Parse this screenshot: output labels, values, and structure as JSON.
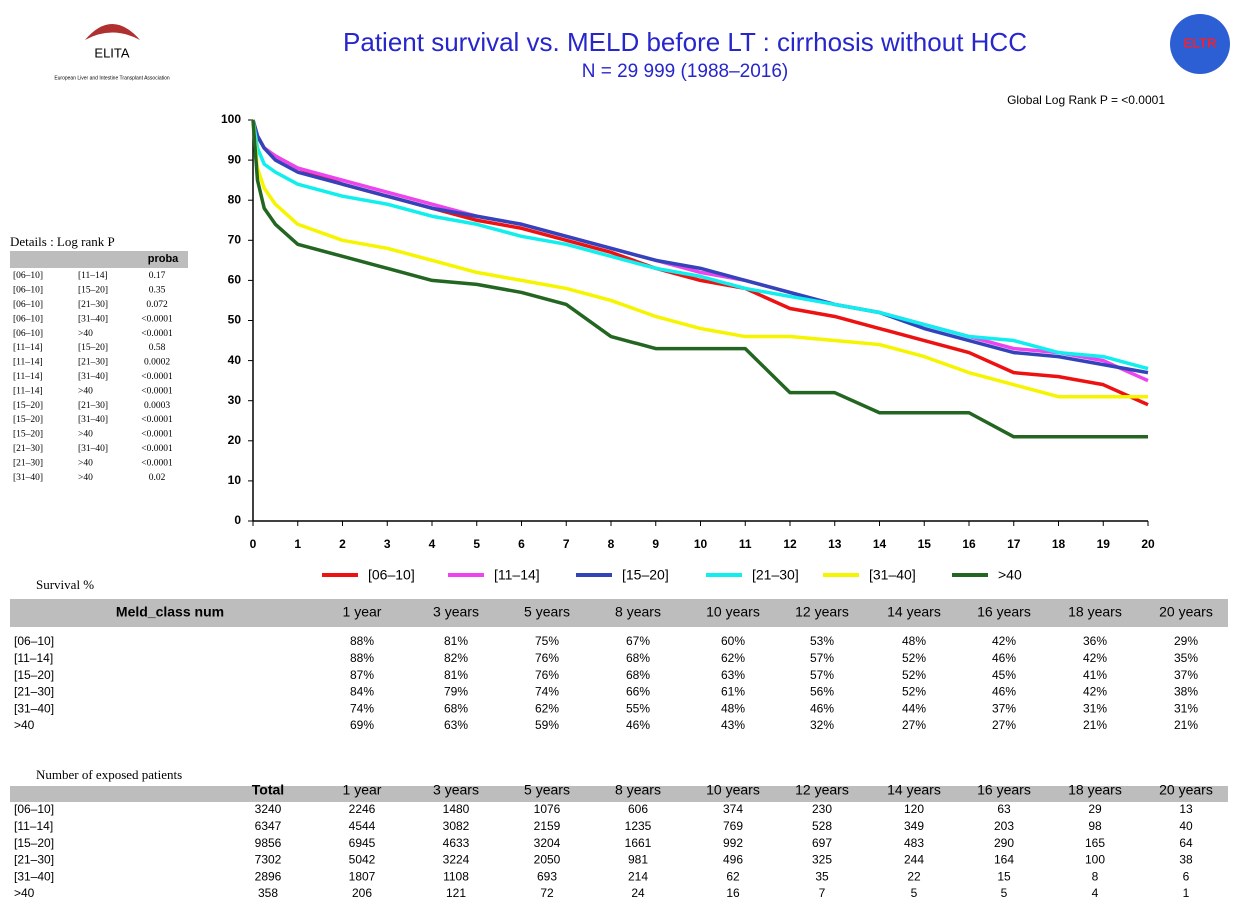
{
  "header": {
    "left_logo": "ELITA",
    "left_logo_caption": "European Liver and Intestine Transplant Association",
    "right_logo": "ELTR"
  },
  "chart_data": {
    "type": "line",
    "title": "Patient survival vs. MELD before LT : cirrhosis without HCC",
    "subtitle": "N = 29 999 (1988–2016)",
    "annotation": "Global Log Rank P = <0.0001",
    "x": [
      0,
      0.1,
      0.25,
      0.5,
      1,
      2,
      3,
      4,
      5,
      6,
      7,
      8,
      9,
      10,
      11,
      12,
      13,
      14,
      15,
      16,
      17,
      18,
      19,
      20
    ],
    "xlim": [
      0,
      20
    ],
    "xticks": [
      0,
      1,
      2,
      3,
      4,
      5,
      6,
      7,
      8,
      9,
      10,
      11,
      12,
      13,
      14,
      15,
      16,
      17,
      18,
      19,
      20
    ],
    "ylim": [
      0,
      100
    ],
    "yticks": [
      0,
      10,
      20,
      30,
      40,
      50,
      60,
      70,
      80,
      90,
      100
    ],
    "legend": "bottom",
    "series": [
      {
        "name": "[06–10]",
        "color": "#ee1111",
        "values": [
          100,
          96,
          93,
          91,
          88,
          84,
          81,
          78,
          75,
          73,
          70,
          67,
          63,
          60,
          58,
          53,
          51,
          48,
          45,
          42,
          37,
          36,
          34,
          29
        ]
      },
      {
        "name": "[11–14]",
        "color": "#ee44ee",
        "values": [
          100,
          96,
          93,
          91,
          88,
          85,
          82,
          79,
          76,
          74,
          71,
          68,
          65,
          62,
          60,
          57,
          54,
          52,
          49,
          46,
          43,
          42,
          40,
          35
        ]
      },
      {
        "name": "[15–20]",
        "color": "#3344bb",
        "values": [
          100,
          96,
          93,
          90,
          87,
          84,
          81,
          78,
          76,
          74,
          71,
          68,
          65,
          63,
          60,
          57,
          54,
          52,
          48,
          45,
          42,
          41,
          39,
          37
        ]
      },
      {
        "name": "[21–30]",
        "color": "#11eeee",
        "values": [
          100,
          93,
          89,
          87,
          84,
          81,
          79,
          76,
          74,
          71,
          69,
          66,
          63,
          61,
          58,
          56,
          54,
          52,
          49,
          46,
          45,
          42,
          41,
          38
        ]
      },
      {
        "name": "[31–40]",
        "color": "#f5f500",
        "values": [
          100,
          88,
          83,
          79,
          74,
          70,
          68,
          65,
          62,
          60,
          58,
          55,
          51,
          48,
          46,
          46,
          45,
          44,
          41,
          37,
          34,
          31,
          31,
          31
        ]
      },
      {
        "name": ">40",
        "color": "#226622",
        "values": [
          100,
          85,
          78,
          74,
          69,
          66,
          63,
          60,
          59,
          57,
          54,
          46,
          43,
          43,
          43,
          32,
          32,
          27,
          27,
          27,
          21,
          21,
          21,
          21
        ]
      }
    ]
  },
  "details": {
    "title": "Details : Log rank P",
    "column": "proba",
    "rows": [
      [
        "[06–10]",
        "[11–14]",
        "0.17"
      ],
      [
        "[06–10]",
        "[15–20]",
        "0.35"
      ],
      [
        "[06–10]",
        "[21–30]",
        "0.072"
      ],
      [
        "[06–10]",
        "[31–40]",
        "<0.0001"
      ],
      [
        "[06–10]",
        ">40",
        "<0.0001"
      ],
      [
        "[11–14]",
        "[15–20]",
        "0.58"
      ],
      [
        "[11–14]",
        "[21–30]",
        "0.0002"
      ],
      [
        "[11–14]",
        "[31–40]",
        "<0.0001"
      ],
      [
        "[11–14]",
        ">40",
        "<0.0001"
      ],
      [
        "[15–20]",
        "[21–30]",
        "0.0003"
      ],
      [
        "[15–20]",
        "[31–40]",
        "<0.0001"
      ],
      [
        "[15–20]",
        ">40",
        "<0.0001"
      ],
      [
        "[21–30]",
        "[31–40]",
        "<0.0001"
      ],
      [
        "[21–30]",
        ">40",
        "<0.0001"
      ],
      [
        "[31–40]",
        ">40",
        "0.02"
      ]
    ]
  },
  "survival_table": {
    "title": "Survival %",
    "columns": [
      "Meld_class num",
      "1 year",
      "3 years",
      "5 years",
      "8 years",
      "10 years",
      "12 years",
      "14 years",
      "16 years",
      "18 years",
      "20 years"
    ],
    "rows": [
      [
        "[06–10]",
        "88%",
        "81%",
        "75%",
        "67%",
        "60%",
        "53%",
        "48%",
        "42%",
        "36%",
        "29%"
      ],
      [
        "[11–14]",
        "88%",
        "82%",
        "76%",
        "68%",
        "62%",
        "57%",
        "52%",
        "46%",
        "42%",
        "35%"
      ],
      [
        "[15–20]",
        "87%",
        "81%",
        "76%",
        "68%",
        "63%",
        "57%",
        "52%",
        "45%",
        "41%",
        "37%"
      ],
      [
        "[21–30]",
        "84%",
        "79%",
        "74%",
        "66%",
        "61%",
        "56%",
        "52%",
        "46%",
        "42%",
        "38%"
      ],
      [
        "[31–40]",
        "74%",
        "68%",
        "62%",
        "55%",
        "48%",
        "46%",
        "44%",
        "37%",
        "31%",
        "31%"
      ],
      [
        ">40",
        "69%",
        "63%",
        "59%",
        "46%",
        "43%",
        "32%",
        "27%",
        "27%",
        "21%",
        "21%"
      ]
    ]
  },
  "exposed_table": {
    "title": "Number of exposed patients",
    "columns": [
      "Total",
      "1 year",
      "3 years",
      "5 years",
      "8 years",
      "10 years",
      "12 years",
      "14 years",
      "16 years",
      "18 years",
      "20 years"
    ],
    "rows": [
      [
        "[06–10]",
        3240,
        2246,
        1480,
        1076,
        606,
        374,
        230,
        120,
        63,
        29,
        13
      ],
      [
        "[11–14]",
        6347,
        4544,
        3082,
        2159,
        1235,
        769,
        528,
        349,
        203,
        98,
        40
      ],
      [
        "[15–20]",
        9856,
        6945,
        4633,
        3204,
        1661,
        992,
        697,
        483,
        290,
        165,
        64
      ],
      [
        "[21–30]",
        7302,
        5042,
        3224,
        2050,
        981,
        496,
        325,
        244,
        164,
        100,
        38
      ],
      [
        "[31–40]",
        2896,
        1807,
        1108,
        693,
        214,
        62,
        35,
        22,
        15,
        8,
        6
      ],
      [
        ">40",
        358,
        206,
        121,
        72,
        24,
        16,
        7,
        5,
        5,
        4,
        1
      ]
    ]
  }
}
